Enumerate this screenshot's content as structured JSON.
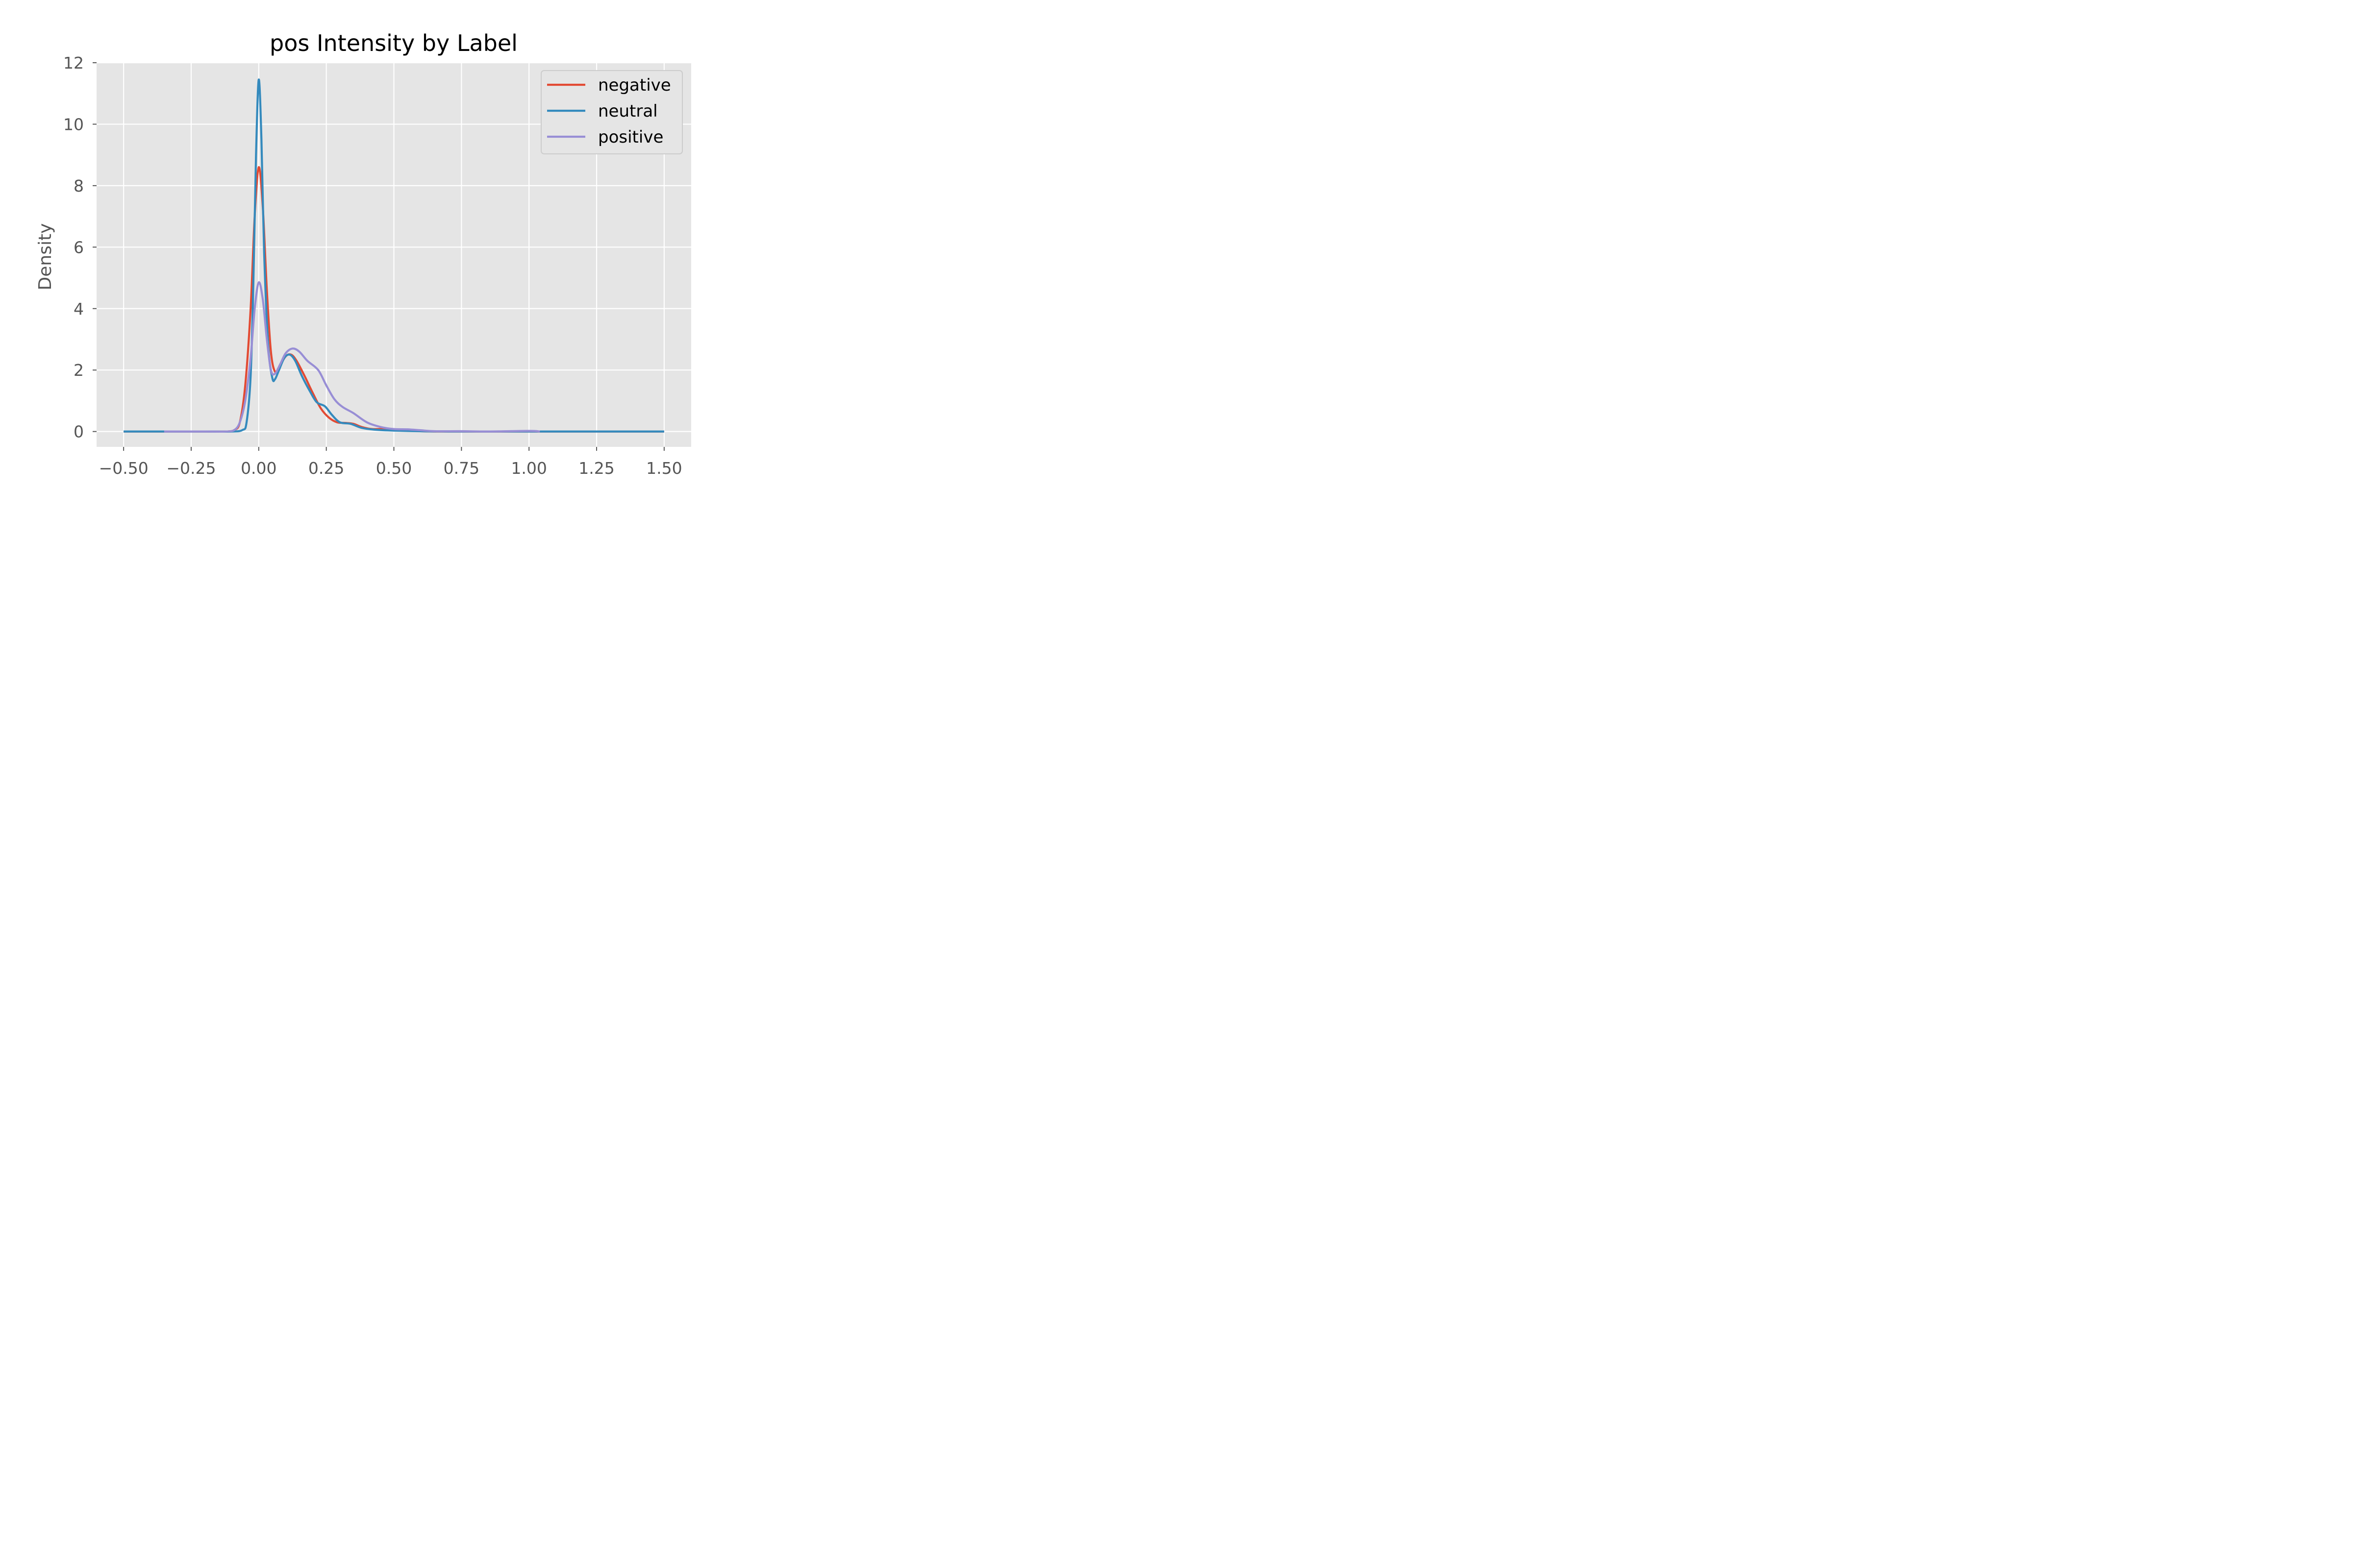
{
  "chart_data": {
    "type": "line",
    "title": "pos Intensity by Label",
    "xlabel": "",
    "ylabel": "Density",
    "xlim": [
      -0.6,
      1.6
    ],
    "ylim": [
      -0.5,
      12
    ],
    "x_ticks": [
      -0.5,
      -0.25,
      0.0,
      0.25,
      0.5,
      0.75,
      1.0,
      1.25,
      1.5
    ],
    "x_tick_labels": [
      "−0.50",
      "−0.25",
      "0.00",
      "0.25",
      "0.50",
      "0.75",
      "1.00",
      "1.25",
      "1.50"
    ],
    "y_ticks": [
      0,
      2,
      4,
      6,
      8,
      10,
      12
    ],
    "y_tick_labels": [
      "0",
      "2",
      "4",
      "6",
      "8",
      "10",
      "12"
    ],
    "grid": true,
    "legend_position": "top-right",
    "colors": {
      "background": "#e5e5e5",
      "grid": "#ffffff"
    },
    "series": [
      {
        "name": "negative",
        "color": "#e24a33",
        "points": [
          [
            -0.5,
            0
          ],
          [
            -0.35,
            0
          ],
          [
            -0.2,
            0
          ],
          [
            -0.12,
            0
          ],
          [
            -0.09,
            0.05
          ],
          [
            -0.07,
            0.3
          ],
          [
            -0.05,
            1.5
          ],
          [
            -0.03,
            4.0
          ],
          [
            -0.015,
            7.0
          ],
          [
            0.0,
            8.6
          ],
          [
            0.015,
            7.3
          ],
          [
            0.03,
            4.6
          ],
          [
            0.045,
            2.6
          ],
          [
            0.06,
            1.95
          ],
          [
            0.075,
            2.1
          ],
          [
            0.1,
            2.45
          ],
          [
            0.12,
            2.5
          ],
          [
            0.14,
            2.3
          ],
          [
            0.17,
            1.8
          ],
          [
            0.2,
            1.25
          ],
          [
            0.23,
            0.75
          ],
          [
            0.26,
            0.45
          ],
          [
            0.29,
            0.3
          ],
          [
            0.32,
            0.28
          ],
          [
            0.35,
            0.25
          ],
          [
            0.38,
            0.15
          ],
          [
            0.42,
            0.08
          ],
          [
            0.48,
            0.09
          ],
          [
            0.52,
            0.05
          ],
          [
            0.58,
            0.02
          ],
          [
            0.65,
            0.0
          ],
          [
            0.8,
            0
          ],
          [
            1.0,
            0
          ],
          [
            1.2,
            0
          ],
          [
            1.5,
            0
          ]
        ]
      },
      {
        "name": "neutral",
        "color": "#348abd",
        "points": [
          [
            -0.5,
            0
          ],
          [
            -0.35,
            0
          ],
          [
            -0.2,
            0
          ],
          [
            -0.1,
            0
          ],
          [
            -0.06,
            0.05
          ],
          [
            -0.045,
            0.3
          ],
          [
            -0.03,
            1.8
          ],
          [
            -0.02,
            4.8
          ],
          [
            -0.01,
            9.0
          ],
          [
            0.0,
            11.45
          ],
          [
            0.01,
            9.5
          ],
          [
            0.02,
            5.8
          ],
          [
            0.035,
            2.8
          ],
          [
            0.05,
            1.75
          ],
          [
            0.06,
            1.7
          ],
          [
            0.075,
            2.0
          ],
          [
            0.095,
            2.4
          ],
          [
            0.115,
            2.5
          ],
          [
            0.135,
            2.3
          ],
          [
            0.16,
            1.8
          ],
          [
            0.19,
            1.3
          ],
          [
            0.215,
            0.95
          ],
          [
            0.245,
            0.82
          ],
          [
            0.27,
            0.55
          ],
          [
            0.3,
            0.3
          ],
          [
            0.34,
            0.25
          ],
          [
            0.38,
            0.12
          ],
          [
            0.43,
            0.06
          ],
          [
            0.5,
            0.03
          ],
          [
            0.6,
            0.01
          ],
          [
            0.7,
            0
          ],
          [
            0.9,
            0
          ],
          [
            1.1,
            0
          ],
          [
            1.3,
            0
          ],
          [
            1.5,
            0
          ]
        ]
      },
      {
        "name": "positive",
        "color": "#988ed5",
        "points": [
          [
            -0.35,
            0
          ],
          [
            -0.2,
            0
          ],
          [
            -0.12,
            0
          ],
          [
            -0.09,
            0.05
          ],
          [
            -0.07,
            0.3
          ],
          [
            -0.05,
            1.0
          ],
          [
            -0.03,
            2.4
          ],
          [
            -0.015,
            4.0
          ],
          [
            0.0,
            4.85
          ],
          [
            0.015,
            4.3
          ],
          [
            0.03,
            3.0
          ],
          [
            0.045,
            2.0
          ],
          [
            0.06,
            1.88
          ],
          [
            0.08,
            2.2
          ],
          [
            0.1,
            2.55
          ],
          [
            0.125,
            2.7
          ],
          [
            0.15,
            2.6
          ],
          [
            0.18,
            2.3
          ],
          [
            0.22,
            2.0
          ],
          [
            0.25,
            1.5
          ],
          [
            0.28,
            1.05
          ],
          [
            0.31,
            0.8
          ],
          [
            0.35,
            0.6
          ],
          [
            0.4,
            0.3
          ],
          [
            0.45,
            0.15
          ],
          [
            0.5,
            0.08
          ],
          [
            0.55,
            0.07
          ],
          [
            0.6,
            0.04
          ],
          [
            0.65,
            0.01
          ],
          [
            0.75,
            0.01
          ],
          [
            0.85,
            0.0
          ],
          [
            1.0,
            0.02
          ],
          [
            1.04,
            0.0
          ]
        ]
      }
    ]
  }
}
